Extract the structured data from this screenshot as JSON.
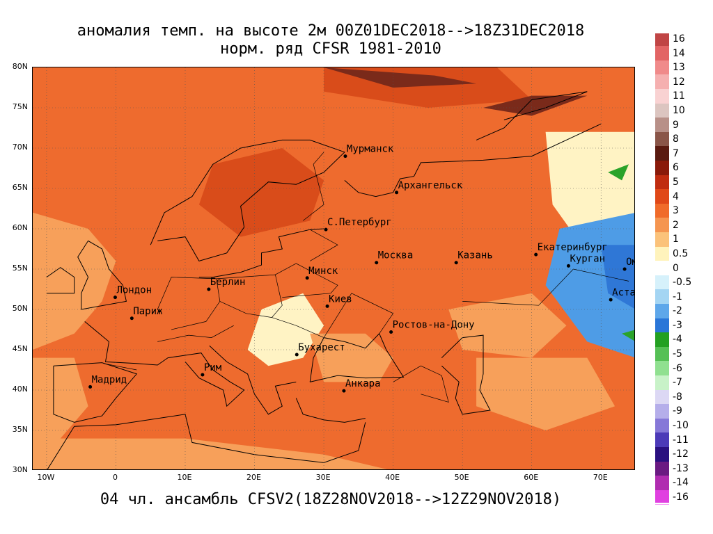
{
  "title_line1": "аномалия темп. на высоте 2м 00Z01DEC2018-->18Z31DEC2018",
  "title_line2": "норм. ряд CFSR 1981-2010",
  "footer": "04 чл. ансамбль CFSV2(18Z28NOV2018-->12Z29NOV2018)",
  "map": {
    "lon_range": [
      -12,
      75
    ],
    "lat_range": [
      30,
      80
    ],
    "lat_ticks": [
      "80N",
      "75N",
      "70N",
      "65N",
      "60N",
      "55N",
      "50N",
      "45N",
      "40N",
      "35N",
      "30N"
    ],
    "lon_ticks": [
      "10W",
      "0",
      "10E",
      "20E",
      "30E",
      "40E",
      "50E",
      "60E",
      "70E"
    ],
    "cities": [
      {
        "name": "Мурманск",
        "lon": 33.1,
        "lat": 69.0
      },
      {
        "name": "Архангельск",
        "lon": 40.5,
        "lat": 64.5
      },
      {
        "name": "С.Петербург",
        "lon": 30.3,
        "lat": 59.9
      },
      {
        "name": "Москва",
        "lon": 37.6,
        "lat": 55.8
      },
      {
        "name": "Казань",
        "lon": 49.1,
        "lat": 55.8
      },
      {
        "name": "Екатеринбург",
        "lon": 60.6,
        "lat": 56.8
      },
      {
        "name": "Курган",
        "lon": 65.3,
        "lat": 55.4
      },
      {
        "name": "Омск",
        "lon": 73.4,
        "lat": 55.0
      },
      {
        "name": "Астана",
        "lon": 71.4,
        "lat": 51.2
      },
      {
        "name": "Минск",
        "lon": 27.6,
        "lat": 53.9
      },
      {
        "name": "Берлин",
        "lon": 13.4,
        "lat": 52.5
      },
      {
        "name": "Лондон",
        "lon": -0.1,
        "lat": 51.5
      },
      {
        "name": "Париж",
        "lon": 2.3,
        "lat": 48.9
      },
      {
        "name": "Киев",
        "lon": 30.5,
        "lat": 50.4
      },
      {
        "name": "Ростов-на-Дону",
        "lon": 39.7,
        "lat": 47.2
      },
      {
        "name": "Бухарест",
        "lon": 26.1,
        "lat": 44.4
      },
      {
        "name": "Рим",
        "lon": 12.5,
        "lat": 41.9
      },
      {
        "name": "Мадрид",
        "lon": -3.7,
        "lat": 40.4
      },
      {
        "name": "Анкара",
        "lon": 32.9,
        "lat": 39.9
      }
    ]
  },
  "legend": {
    "labels": [
      "16",
      "14",
      "13",
      "12",
      "11",
      "10",
      "9",
      "8",
      "7",
      "6",
      "5",
      "4",
      "3",
      "2",
      "1",
      "0.5",
      "0",
      "-0.5",
      "-1",
      "-2",
      "-3",
      "-4",
      "-5",
      "-6",
      "-7",
      "-8",
      "-9",
      "-10",
      "-11",
      "-12",
      "-13",
      "-14",
      "-16"
    ],
    "colors": [
      "#c04545",
      "#e26565",
      "#f08a8a",
      "#f5b0b0",
      "#f9d2d2",
      "#dcc5c0",
      "#b89088",
      "#8a5548",
      "#5a1a10",
      "#8a1a0a",
      "#c02c10",
      "#e04818",
      "#f06b2a",
      "#f59550",
      "#fbc27a",
      "#fff3bc",
      "#ffffff",
      "#d6f1fb",
      "#a4d5f3",
      "#5ea7ea",
      "#2a76d8",
      "#23a022",
      "#55c055",
      "#90e090",
      "#c8f2c8",
      "#dcd8f4",
      "#b5aeea",
      "#8678d8",
      "#4c3ab8",
      "#2a1080",
      "#6a1a82",
      "#b02cb0",
      "#e040e0",
      "#f5a0f5"
    ]
  },
  "colors": {
    "warm_base": "#ee6b2e",
    "warm_strong": "#d94c1a",
    "hot": "#7a2a1a",
    "mild": "#f7a05a",
    "neutral": "#fff3c4",
    "cold": "#4e9ce6",
    "very_cold": "#2f77d6",
    "green": "#2aa32a",
    "coast": "#000000",
    "border": "#000000",
    "contour": "#a8a8a8"
  }
}
